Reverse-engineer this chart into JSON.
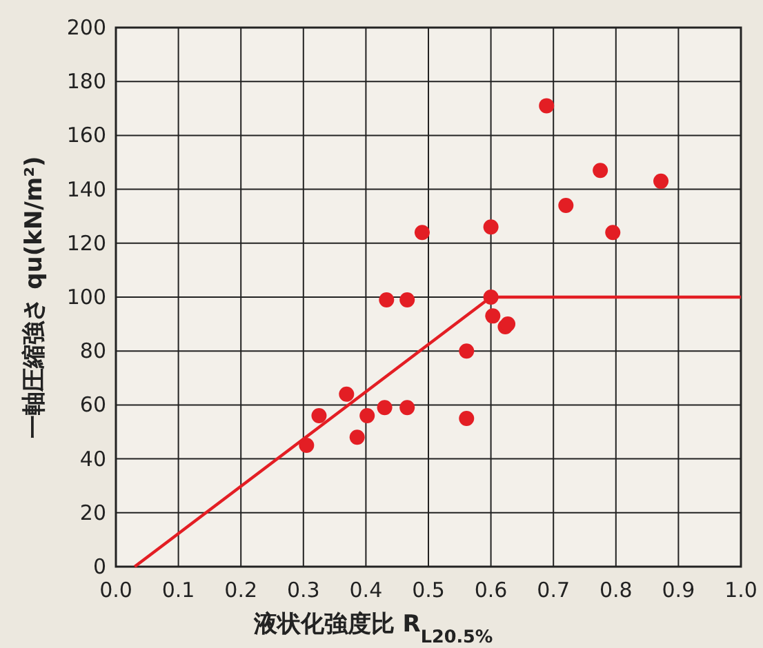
{
  "chart_data": {
    "type": "scatter",
    "xlabel": "液状化強度比 R$_{L20.5%}$",
    "ylabel": "一軸圧縮強さ qu(kN/m²)",
    "xlim": [
      0,
      1
    ],
    "ylim": [
      0,
      200
    ],
    "xticks": [
      {
        "value": 0,
        "label": "0.0"
      },
      0.1,
      0.2,
      0.3,
      0.4,
      0.5,
      0.6,
      0.7,
      0.8,
      0.9,
      {
        "value": 1,
        "label": "1.0"
      }
    ],
    "yticks": [
      0,
      20,
      40,
      60,
      80,
      100,
      120,
      140,
      160,
      180,
      200
    ],
    "grid": true,
    "series": [
      {
        "marker": "circle",
        "color": "#e31e24",
        "x": [
          0.305,
          0.325,
          0.369,
          0.386,
          0.402,
          0.43,
          0.466,
          0.433,
          0.466,
          0.49,
          0.561,
          0.561,
          0.6,
          0.6,
          0.603,
          0.623,
          0.627,
          0.689,
          0.72,
          0.775,
          0.795,
          0.872
        ],
        "values": [
          45,
          56,
          64,
          48,
          56,
          59,
          59,
          99,
          99,
          124,
          80,
          55,
          126,
          100,
          93,
          89,
          90,
          171,
          134,
          147,
          124,
          143
        ]
      },
      {
        "type": "line",
        "color": "#e31e24",
        "x": [
          0.03,
          0.6,
          1.0
        ],
        "values": [
          0,
          100,
          100
        ]
      }
    ]
  }
}
